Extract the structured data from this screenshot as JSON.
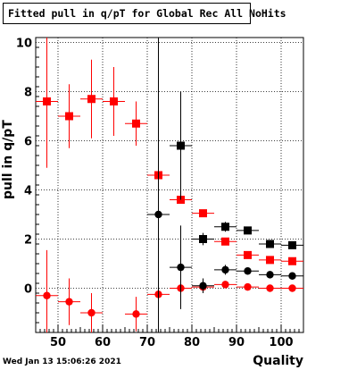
{
  "chart_data": {
    "type": "scatter",
    "title": "Fitted pull in q/pT for Global Rec All NoHits",
    "xlabel": "Quality",
    "ylabel": "pull in q/pT",
    "xlim": [
      45,
      105
    ],
    "ylim": [
      -1.8,
      10.2
    ],
    "x_ticks": [
      50,
      60,
      70,
      80,
      90,
      100
    ],
    "y_ticks": [
      0,
      2,
      4,
      6,
      8,
      10
    ],
    "grid": true,
    "series": [
      {
        "marker": "square",
        "color": "#ff0000",
        "points": [
          {
            "x": 47.5,
            "y": 7.6,
            "yerr": 2.7,
            "xerr": 2.5
          },
          {
            "x": 52.5,
            "y": 7.0,
            "yerr": 1.3,
            "xerr": 2.5
          },
          {
            "x": 57.5,
            "y": 7.7,
            "yerr": 1.6,
            "xerr": 2.5
          },
          {
            "x": 62.5,
            "y": 7.6,
            "yerr": 1.4,
            "xerr": 2.5
          },
          {
            "x": 67.5,
            "y": 6.7,
            "yerr": 0.9,
            "xerr": 2.5
          },
          {
            "x": 72.5,
            "y": 4.6,
            "yerr": 0.0,
            "xerr": 2.5
          },
          {
            "x": 77.5,
            "y": 3.6,
            "yerr": 0.0,
            "xerr": 2.5
          },
          {
            "x": 82.5,
            "y": 3.05,
            "yerr": 0.0,
            "xerr": 2.5
          },
          {
            "x": 87.5,
            "y": 1.9,
            "yerr": 0.0,
            "xerr": 2.5
          },
          {
            "x": 92.5,
            "y": 1.35,
            "yerr": 0.0,
            "xerr": 2.5
          },
          {
            "x": 97.5,
            "y": 1.15,
            "yerr": 0.0,
            "xerr": 2.5
          },
          {
            "x": 102.5,
            "y": 1.1,
            "yerr": 0.0,
            "xerr": 2.5
          }
        ]
      },
      {
        "marker": "square",
        "color": "#000000",
        "points": [
          {
            "x": 77.5,
            "y": 5.8,
            "yerr": 2.2,
            "xerr": 2.5
          },
          {
            "x": 82.5,
            "y": 2.0,
            "yerr": 0.25,
            "xerr": 2.5
          },
          {
            "x": 87.5,
            "y": 2.5,
            "yerr": 0.2,
            "xerr": 2.5
          },
          {
            "x": 92.5,
            "y": 2.35,
            "yerr": 0.0,
            "xerr": 2.5
          },
          {
            "x": 97.5,
            "y": 1.8,
            "yerr": 0.0,
            "xerr": 2.5
          },
          {
            "x": 102.5,
            "y": 1.75,
            "yerr": 0.0,
            "xerr": 2.5
          }
        ]
      },
      {
        "marker": "circle",
        "color": "#ff0000",
        "points": [
          {
            "x": 47.5,
            "y": -0.3,
            "yerr": 1.85,
            "xerr": 2.5
          },
          {
            "x": 52.5,
            "y": -0.55,
            "yerr": 0.95,
            "xerr": 2.5
          },
          {
            "x": 57.5,
            "y": -1.0,
            "yerr": 0.8,
            "xerr": 2.5
          },
          {
            "x": 67.5,
            "y": -1.05,
            "yerr": 0.7,
            "xerr": 2.5
          },
          {
            "x": 72.5,
            "y": -0.25,
            "yerr": 0.6,
            "xerr": 2.5
          },
          {
            "x": 77.5,
            "y": 0.0,
            "yerr": 0.0,
            "xerr": 2.5
          },
          {
            "x": 82.5,
            "y": 0.05,
            "yerr": 0.0,
            "xerr": 2.5
          },
          {
            "x": 87.5,
            "y": 0.15,
            "yerr": 0.0,
            "xerr": 2.5
          },
          {
            "x": 92.5,
            "y": 0.05,
            "yerr": 0.0,
            "xerr": 2.5
          },
          {
            "x": 97.5,
            "y": 0.0,
            "yerr": 0.0,
            "xerr": 2.5
          },
          {
            "x": 102.5,
            "y": 0.0,
            "yerr": 0.0,
            "xerr": 2.5
          }
        ]
      },
      {
        "marker": "circle",
        "color": "#000000",
        "points": [
          {
            "x": 72.5,
            "y": 3.0,
            "yerr": 7.5,
            "xerr": 2.5
          },
          {
            "x": 77.5,
            "y": 0.85,
            "yerr": 1.7,
            "xerr": 2.5
          },
          {
            "x": 82.5,
            "y": 0.1,
            "yerr": 0.3,
            "xerr": 2.5
          },
          {
            "x": 87.5,
            "y": 0.75,
            "yerr": 0.2,
            "xerr": 2.5
          },
          {
            "x": 92.5,
            "y": 0.7,
            "yerr": 0.0,
            "xerr": 2.5
          },
          {
            "x": 97.5,
            "y": 0.55,
            "yerr": 0.0,
            "xerr": 2.5
          },
          {
            "x": 102.5,
            "y": 0.5,
            "yerr": 0.0,
            "xerr": 2.5
          }
        ]
      }
    ]
  },
  "footer": {
    "timestamp": "Wed Jan 13 15:06:26 2021"
  }
}
